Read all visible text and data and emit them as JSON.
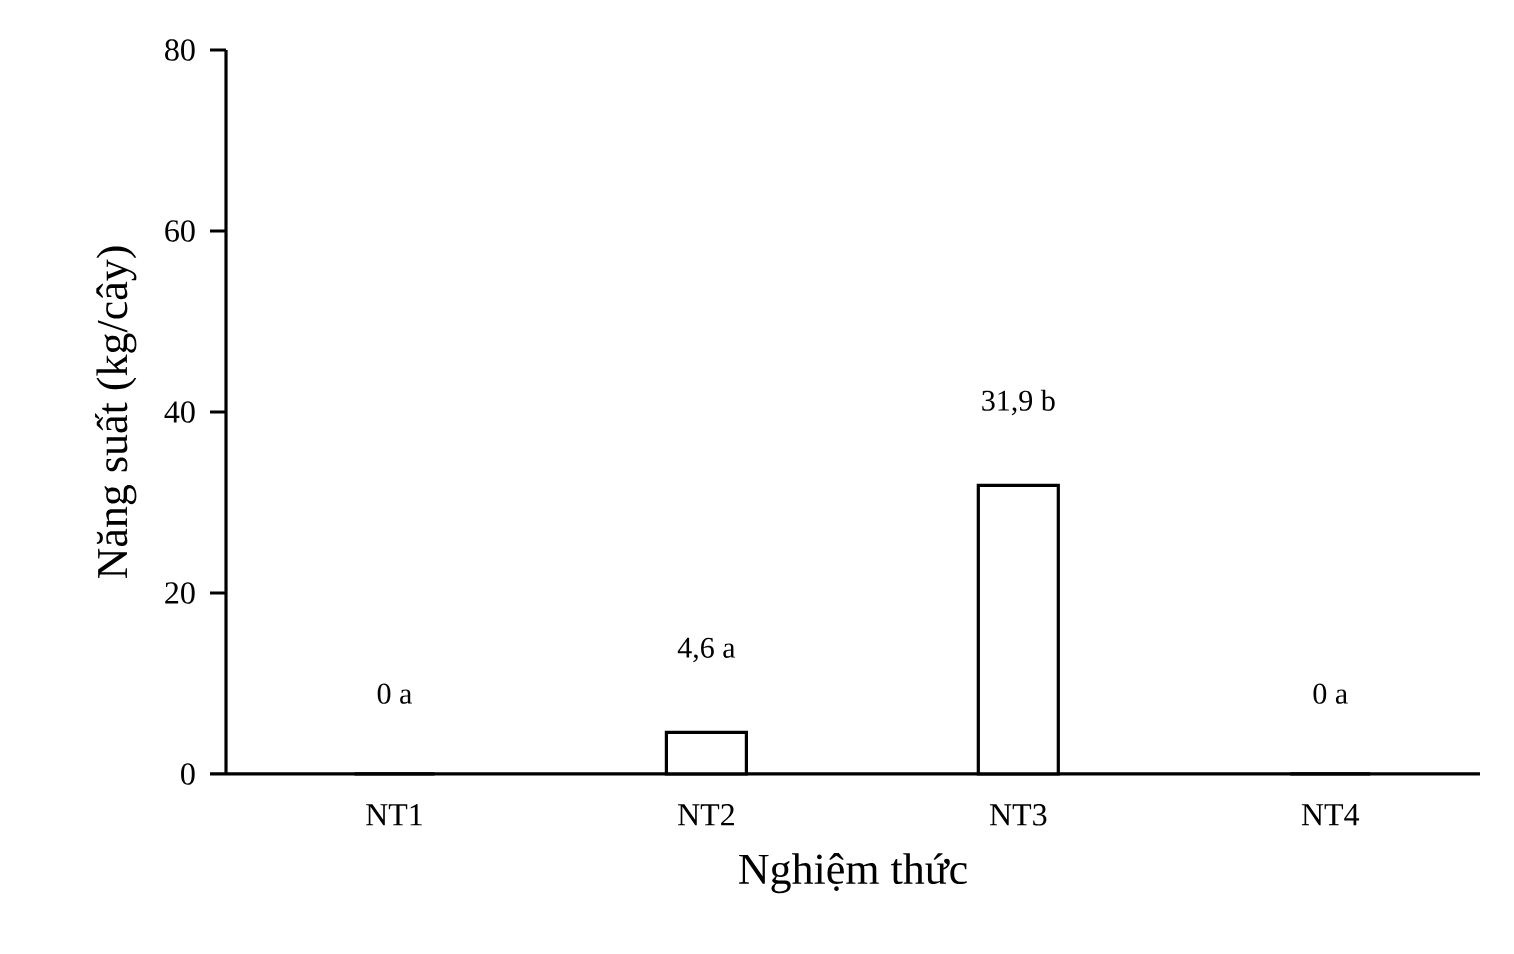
{
  "chart_data": {
    "type": "bar",
    "xlabel": "Nghiệm thức",
    "ylabel": "Năng suất (kg/cây)",
    "categories": [
      "NT1",
      "NT2",
      "NT3",
      "NT4"
    ],
    "values": [
      0,
      4.6,
      31.9,
      0
    ],
    "value_labels": [
      "0 a",
      "4,6 a",
      "31,9 b",
      "0 a"
    ],
    "color": "#ffffff",
    "ylim": [
      0,
      80
    ],
    "yticks": [
      0,
      20,
      40,
      60,
      80
    ]
  }
}
